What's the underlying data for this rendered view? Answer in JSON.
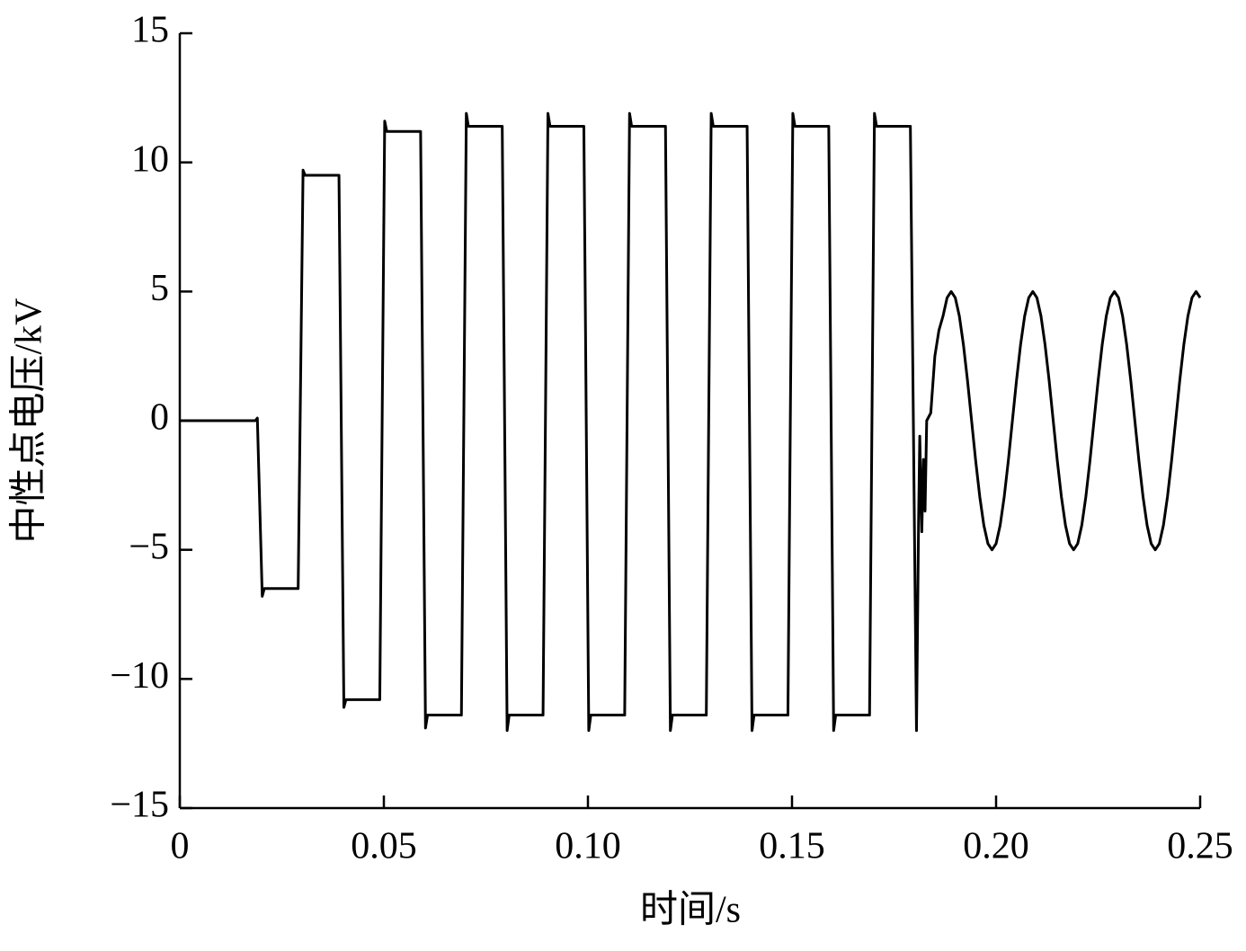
{
  "chart_data": {
    "type": "line",
    "xlabel": "时间/s",
    "ylabel": "中性点电压/kV",
    "xlim": [
      0,
      0.25
    ],
    "ylim": [
      -15,
      15
    ],
    "xticks": [
      0,
      0.05,
      {
        "value": 0.1,
        "label": "0.10"
      },
      0.15,
      {
        "value": 0.2,
        "label": "0.20"
      },
      0.25
    ],
    "yticks": [
      15,
      10,
      5,
      0,
      {
        "value": -5,
        "label": "−5"
      },
      {
        "value": -10,
        "label": "−10"
      },
      {
        "value": -15,
        "label": "−15"
      }
    ],
    "grid": false,
    "color": "#000000",
    "x": [
      0,
      0.0185,
      0.019,
      0.0202,
      0.0207,
      0.029,
      0.0302,
      0.0307,
      0.039,
      0.0402,
      0.0407,
      0.049,
      0.0502,
      0.0507,
      0.059,
      0.0602,
      0.0607,
      0.069,
      0.0702,
      0.0707,
      0.079,
      0.0802,
      0.0807,
      0.089,
      0.0902,
      0.0907,
      0.099,
      0.1002,
      0.1007,
      0.109,
      0.1102,
      0.1107,
      0.119,
      0.1202,
      0.1207,
      0.129,
      0.1302,
      0.1307,
      0.139,
      0.1402,
      0.1407,
      0.149,
      0.1502,
      0.1507,
      0.159,
      0.1602,
      0.1607,
      0.169,
      0.1702,
      0.1707,
      0.179,
      0.1805,
      0.181,
      0.1813,
      0.1818,
      0.1822,
      0.1826,
      0.183,
      0.184,
      0.185,
      0.186,
      0.187,
      0.188,
      0.189,
      0.19,
      0.191,
      0.192,
      0.193,
      0.194,
      0.195,
      0.196,
      0.197,
      0.198,
      0.199,
      0.2,
      0.201,
      0.202,
      0.203,
      0.204,
      0.205,
      0.206,
      0.207,
      0.208,
      0.209,
      0.21,
      0.211,
      0.212,
      0.213,
      0.214,
      0.215,
      0.216,
      0.217,
      0.218,
      0.219,
      0.22,
      0.221,
      0.222,
      0.223,
      0.224,
      0.225,
      0.226,
      0.227,
      0.228,
      0.229,
      0.23,
      0.231,
      0.232,
      0.233,
      0.234,
      0.235,
      0.236,
      0.237,
      0.238,
      0.239,
      0.24,
      0.241,
      0.242,
      0.243,
      0.244,
      0.245,
      0.246,
      0.247,
      0.248,
      0.249,
      0.25
    ],
    "values": [
      0,
      0,
      0.1,
      -6.8,
      -6.5,
      -6.5,
      9.7,
      9.5,
      9.5,
      -11.1,
      -10.8,
      -10.8,
      11.6,
      11.2,
      11.2,
      -11.9,
      -11.4,
      -11.4,
      11.9,
      11.4,
      11.4,
      -12,
      -11.4,
      -11.4,
      11.9,
      11.4,
      11.4,
      -12,
      -11.4,
      -11.4,
      11.9,
      11.4,
      11.4,
      -12,
      -11.4,
      -11.4,
      11.9,
      11.4,
      11.4,
      -12,
      -11.4,
      -11.4,
      11.9,
      11.4,
      11.4,
      -12,
      -11.4,
      -11.4,
      11.9,
      11.4,
      11.4,
      -12,
      -4,
      -0.6,
      -4.3,
      -1.5,
      -3.5,
      0,
      0.3,
      2.5,
      3.5,
      4.05,
      4.76,
      5,
      4.76,
      4.05,
      2.94,
      1.55,
      0,
      -1.55,
      -2.94,
      -4.05,
      -4.76,
      -5,
      -4.76,
      -4.05,
      -2.94,
      -1.55,
      0,
      1.55,
      2.94,
      4.05,
      4.76,
      5,
      4.76,
      4.05,
      2.94,
      1.55,
      0,
      -1.55,
      -2.94,
      -4.05,
      -4.76,
      -5,
      -4.76,
      -4.05,
      -2.94,
      -1.55,
      0,
      1.55,
      2.94,
      4.05,
      4.76,
      5,
      4.76,
      4.05,
      2.94,
      1.55,
      0,
      -1.55,
      -2.94,
      -4.05,
      -4.76,
      -5,
      -4.76,
      -4.05,
      -2.94,
      -1.55,
      0,
      1.55,
      2.94,
      4.05,
      4.76,
      5,
      4.76
    ]
  }
}
